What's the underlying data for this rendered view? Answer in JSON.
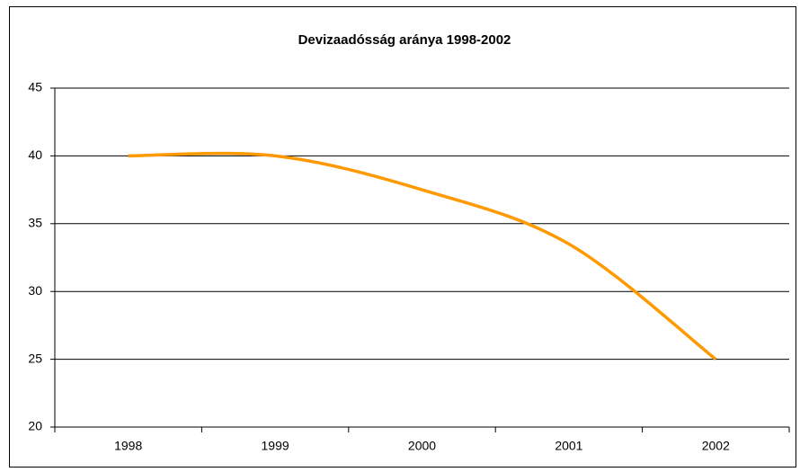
{
  "chart_data": {
    "type": "line",
    "title": "Devizaadósság aránya 1998-2002",
    "categories": [
      "1998",
      "1999",
      "2000",
      "2001",
      "2002"
    ],
    "series": [
      {
        "name": "Devizaadósság aránya",
        "color": "#ff9900",
        "values": [
          40,
          40,
          37.5,
          33.5,
          25
        ]
      }
    ],
    "ylim": [
      20,
      45
    ],
    "yticks": [
      20,
      25,
      30,
      35,
      40,
      45
    ],
    "grid": true,
    "smooth": true
  }
}
